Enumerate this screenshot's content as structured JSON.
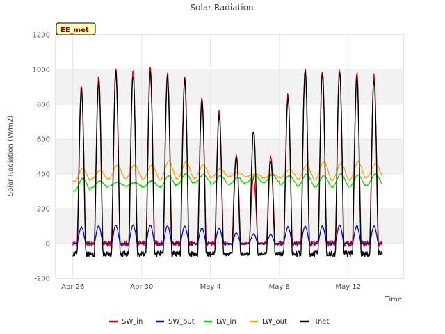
{
  "chart_data": {
    "type": "line",
    "title": "Solar Radiation",
    "badge": "EE_met",
    "xlabel": "Time",
    "ylabel": "Solar Radiation (W/m2)",
    "ylim": [
      -200,
      1200
    ],
    "yticks": [
      -200,
      0,
      200,
      400,
      600,
      800,
      1000,
      1200
    ],
    "xlim": [
      "2023-04-25",
      "2023-05-15"
    ],
    "xticks": [
      {
        "date": "2023-04-26",
        "label": "Apr 26"
      },
      {
        "date": "2023-04-30",
        "label": "Apr 30"
      },
      {
        "date": "2023-05-04",
        "label": "May 4"
      },
      {
        "date": "2023-05-08",
        "label": "May 8"
      },
      {
        "date": "2023-05-12",
        "label": "May 12"
      }
    ],
    "grid": true,
    "legend_position": "bottom",
    "days": [
      "2023-04-26",
      "2023-04-27",
      "2023-04-28",
      "2023-04-29",
      "2023-04-30",
      "2023-05-01",
      "2023-05-02",
      "2023-05-03",
      "2023-05-04",
      "2023-05-05",
      "2023-05-06",
      "2023-05-07",
      "2023-05-08",
      "2023-05-09",
      "2023-05-10",
      "2023-05-11",
      "2023-05-12",
      "2023-05-13"
    ],
    "series": [
      {
        "name": "SW_in",
        "color": "#dd0000",
        "night": 0,
        "daily_peak": [
          900,
          960,
          1000,
          990,
          1010,
          980,
          960,
          830,
          760,
          510,
          380,
          500,
          860,
          1000,
          990,
          1005,
          975,
          960
        ]
      },
      {
        "name": "SW_out",
        "color": "#0000dd",
        "night": 0,
        "daily_peak": [
          95,
          100,
          105,
          105,
          105,
          100,
          100,
          90,
          88,
          60,
          55,
          50,
          95,
          100,
          100,
          105,
          100,
          100
        ]
      },
      {
        "name": "LW_in",
        "color": "#00dd00",
        "daily_min": [
          300,
          320,
          330,
          330,
          325,
          325,
          340,
          350,
          340,
          340,
          350,
          350,
          340,
          330,
          325,
          325,
          325,
          335
        ],
        "daily_max": [
          375,
          360,
          350,
          350,
          360,
          390,
          400,
          395,
          390,
          380,
          390,
          395,
          390,
          400,
          390,
          400,
          395,
          400
        ]
      },
      {
        "name": "LW_out",
        "color": "#ffa500",
        "daily_min": [
          355,
          370,
          370,
          375,
          370,
          365,
          370,
          375,
          380,
          385,
          385,
          375,
          380,
          370,
          365,
          365,
          365,
          380
        ],
        "daily_max": [
          430,
          420,
          450,
          450,
          450,
          475,
          470,
          450,
          430,
          410,
          400,
          400,
          425,
          450,
          470,
          460,
          470,
          460
        ]
      },
      {
        "name": "Rnet",
        "color": "#000000",
        "night": -60,
        "daily_peak": [
          880,
          930,
          980,
          970,
          990,
          960,
          940,
          820,
          740,
          500,
          650,
          480,
          840,
          990,
          980,
          990,
          955,
          940
        ]
      }
    ]
  }
}
